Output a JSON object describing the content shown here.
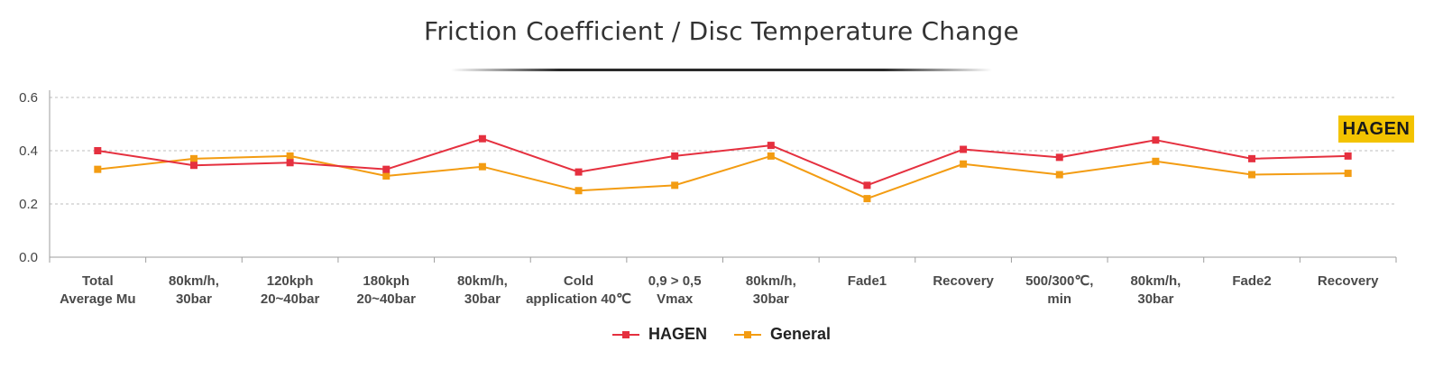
{
  "colors": {
    "hagen": "#e5303f",
    "general": "#f39c12",
    "grid": "#bdbdbd",
    "axis": "#9e9e9e",
    "badge": "#f3c300"
  },
  "badge": {
    "text": "HAGEN"
  },
  "chart_data": {
    "type": "line",
    "title": "Friction Coefficient / Disc Temperature Change",
    "xlabel": "",
    "ylabel": "",
    "ylim": [
      0,
      0.6
    ],
    "yticks": [
      "0.0",
      "0.2",
      "0.4",
      "0.6"
    ],
    "grid": true,
    "legend_position": "bottom",
    "categories": [
      [
        "Total",
        "Average Mu"
      ],
      [
        "80km/h,",
        "30bar"
      ],
      [
        "120kph",
        "20~40bar"
      ],
      [
        "180kph",
        "20~40bar"
      ],
      [
        "80km/h,",
        "30bar"
      ],
      [
        "Cold",
        "application 40℃"
      ],
      [
        "0,9 > 0,5",
        "Vmax"
      ],
      [
        "80km/h,",
        "30bar"
      ],
      [
        "Fade1"
      ],
      [
        "Recovery"
      ],
      [
        "500/300℃,",
        "min"
      ],
      [
        "80km/h,",
        "30bar"
      ],
      [
        "Fade2"
      ],
      [
        "Recovery"
      ]
    ],
    "series": [
      {
        "name": "HAGEN",
        "color": "#e5303f",
        "values": [
          0.4,
          0.345,
          0.355,
          0.33,
          0.445,
          0.32,
          0.38,
          0.42,
          0.27,
          0.405,
          0.375,
          0.44,
          0.37,
          0.38
        ]
      },
      {
        "name": "General",
        "color": "#f39c12",
        "values": [
          0.33,
          0.37,
          0.38,
          0.305,
          0.34,
          0.25,
          0.27,
          0.38,
          0.22,
          0.35,
          0.31,
          0.36,
          0.31,
          0.315
        ]
      }
    ]
  }
}
